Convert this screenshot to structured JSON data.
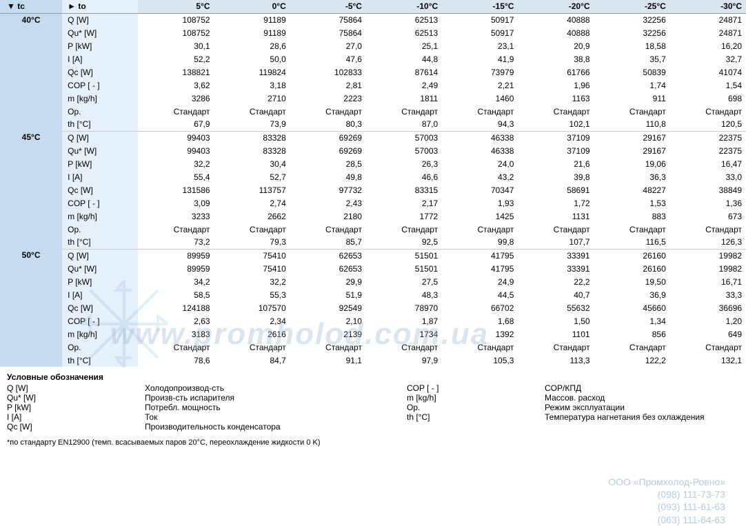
{
  "header": {
    "tc_label": "▼ tc",
    "to_label": "► to",
    "to_values": [
      "5°C",
      "0°C",
      "-5°C",
      "-10°C",
      "-15°C",
      "-20°C",
      "-25°C",
      "-30°C"
    ]
  },
  "params": [
    "Q [W]",
    "Qu* [W]",
    "P [kW]",
    "I [A]",
    "Qc [W]",
    "COP [ - ]",
    "m [kg/h]",
    "Op.",
    "th [°C]"
  ],
  "groups": [
    {
      "tc": "40°C",
      "rows": [
        [
          "108752",
          "91189",
          "75864",
          "62513",
          "50917",
          "40888",
          "32256",
          "24871"
        ],
        [
          "108752",
          "91189",
          "75864",
          "62513",
          "50917",
          "40888",
          "32256",
          "24871"
        ],
        [
          "30,1",
          "28,6",
          "27,0",
          "25,1",
          "23,1",
          "20,9",
          "18,58",
          "16,20"
        ],
        [
          "52,2",
          "50,0",
          "47,6",
          "44,8",
          "41,9",
          "38,8",
          "35,7",
          "32,7"
        ],
        [
          "138821",
          "119824",
          "102833",
          "87614",
          "73979",
          "61766",
          "50839",
          "41074"
        ],
        [
          "3,62",
          "3,18",
          "2,81",
          "2,49",
          "2,21",
          "1,96",
          "1,74",
          "1,54"
        ],
        [
          "3286",
          "2710",
          "2223",
          "1811",
          "1460",
          "1163",
          "911",
          "698"
        ],
        [
          "Стандарт",
          "Стандарт",
          "Стандарт",
          "Стандарт",
          "Стандарт",
          "Стандарт",
          "Стандарт",
          "Стандарт"
        ],
        [
          "67,9",
          "73,9",
          "80,3",
          "87,0",
          "94,3",
          "102,1",
          "110,8",
          "120,5"
        ]
      ]
    },
    {
      "tc": "45°C",
      "rows": [
        [
          "99403",
          "83328",
          "69269",
          "57003",
          "46338",
          "37109",
          "29167",
          "22375"
        ],
        [
          "99403",
          "83328",
          "69269",
          "57003",
          "46338",
          "37109",
          "29167",
          "22375"
        ],
        [
          "32,2",
          "30,4",
          "28,5",
          "26,3",
          "24,0",
          "21,6",
          "19,06",
          "16,47"
        ],
        [
          "55,4",
          "52,7",
          "49,8",
          "46,6",
          "43,2",
          "39,8",
          "36,3",
          "33,0"
        ],
        [
          "131586",
          "113757",
          "97732",
          "83315",
          "70347",
          "58691",
          "48227",
          "38849"
        ],
        [
          "3,09",
          "2,74",
          "2,43",
          "2,17",
          "1,93",
          "1,72",
          "1,53",
          "1,36"
        ],
        [
          "3233",
          "2662",
          "2180",
          "1772",
          "1425",
          "1131",
          "883",
          "673"
        ],
        [
          "Стандарт",
          "Стандарт",
          "Стандарт",
          "Стандарт",
          "Стандарт",
          "Стандарт",
          "Стандарт",
          "Стандарт"
        ],
        [
          "73,2",
          "79,3",
          "85,7",
          "92,5",
          "99,8",
          "107,7",
          "116,5",
          "126,3"
        ]
      ]
    },
    {
      "tc": "50°C",
      "rows": [
        [
          "89959",
          "75410",
          "62653",
          "51501",
          "41795",
          "33391",
          "26160",
          "19982"
        ],
        [
          "89959",
          "75410",
          "62653",
          "51501",
          "41795",
          "33391",
          "26160",
          "19982"
        ],
        [
          "34,2",
          "32,2",
          "29,9",
          "27,5",
          "24,9",
          "22,2",
          "19,50",
          "16,71"
        ],
        [
          "58,5",
          "55,3",
          "51,9",
          "48,3",
          "44,5",
          "40,7",
          "36,9",
          "33,3"
        ],
        [
          "124188",
          "107570",
          "92549",
          "78970",
          "66702",
          "55632",
          "45660",
          "36696"
        ],
        [
          "2,63",
          "2,34",
          "2,10",
          "1,87",
          "1,68",
          "1,50",
          "1,34",
          "1,20"
        ],
        [
          "3183",
          "2616",
          "2139",
          "1734",
          "1392",
          "1101",
          "856",
          "649"
        ],
        [
          "Стандарт",
          "Стандарт",
          "Стандарт",
          "Стандарт",
          "Стандарт",
          "Стандарт",
          "Стандарт",
          "Стандарт"
        ],
        [
          "78,6",
          "84,7",
          "91,1",
          "97,9",
          "105,3",
          "113,3",
          "122,2",
          "132,1"
        ]
      ]
    }
  ],
  "legend": {
    "title": "Условные обозначения",
    "items": [
      [
        "Q [W]",
        "Холодопроизвод-сть",
        "COP [ - ]",
        "COP/КПД"
      ],
      [
        "Qu* [W]",
        "Произв-сть испарителя",
        "m [kg/h]",
        "Массов. расход"
      ],
      [
        "P [kW]",
        "Потребл. мощность",
        "Op.",
        "Режим эксплуатации"
      ],
      [
        "I [A]",
        "Ток",
        "th [°C]",
        "Температура нагнетания без охлаждения"
      ],
      [
        "Qc [W]",
        "Производительность конденсатора",
        "",
        ""
      ]
    ]
  },
  "footnote": "*по стандарту EN12900 (темп. всасываемых паров 20°C, переохлаждение жидкости 0 K)",
  "watermark": "www.promholod.com.ua",
  "company": {
    "name": "ООО «Промхолод-Ровно»",
    "phones": [
      "(098) 111-73-73",
      "(093) 111-61-63",
      "(063) 111-64-63"
    ]
  },
  "colors": {
    "header_bg": "#d9e6f2",
    "tc_bg": "#c5dbf0",
    "param_bg": "#e6f0fa",
    "border": "#cccccc"
  }
}
